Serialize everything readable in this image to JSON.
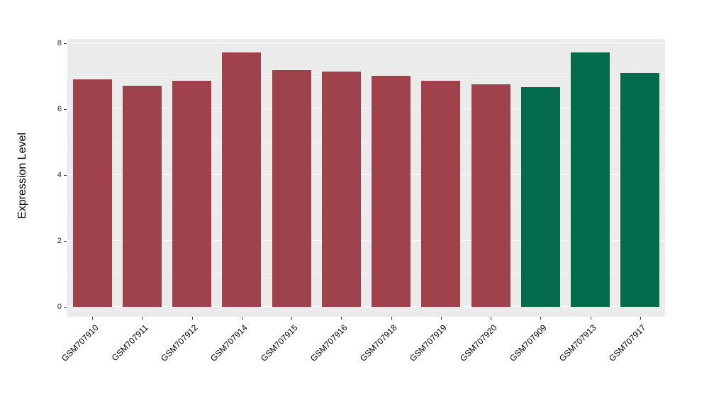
{
  "chart_data": {
    "type": "bar",
    "title": "",
    "xlabel": "",
    "ylabel": "Expression Level",
    "ylim": [
      0,
      8
    ],
    "yticks": [
      0,
      2,
      4,
      6,
      8
    ],
    "yticks_minor": [
      1,
      3,
      5,
      7
    ],
    "categories": [
      "GSM707910",
      "GSM707911",
      "GSM707912",
      "GSM707914",
      "GSM707915",
      "GSM707916",
      "GSM707918",
      "GSM707919",
      "GSM707920",
      "GSM707909",
      "GSM707913",
      "GSM707917"
    ],
    "values": [
      6.9,
      6.72,
      6.87,
      7.72,
      7.18,
      7.15,
      7.02,
      6.85,
      6.75,
      6.67,
      7.72,
      7.1
    ],
    "groups": [
      "red",
      "red",
      "red",
      "red",
      "red",
      "red",
      "red",
      "red",
      "red",
      "green",
      "green",
      "green"
    ],
    "colors": {
      "red": "#A0424C",
      "green": "#046C4C"
    },
    "panel_bg": "#EBEBEB",
    "grid_color": "#FFFFFF",
    "grid": true,
    "legend": "none"
  }
}
